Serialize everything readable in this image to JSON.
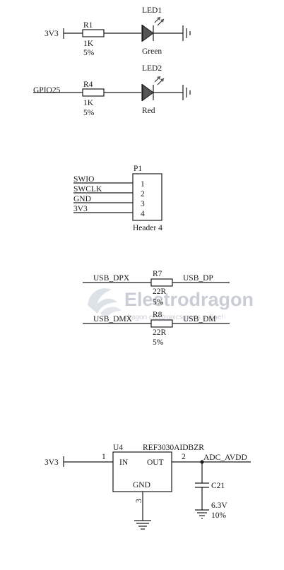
{
  "led_section": {
    "row1": {
      "net": "3V3",
      "resistor_ref": "R1",
      "resistor_value": "1K",
      "resistor_tol": "5%",
      "led_ref": "LED1",
      "led_color": "Green"
    },
    "row2": {
      "net": "GPIO25",
      "resistor_ref": "R4",
      "resistor_value": "1K",
      "resistor_tol": "5%",
      "led_ref": "LED2",
      "led_color": "Red"
    }
  },
  "header": {
    "ref": "P1",
    "name": "Header 4",
    "nets": [
      "SWIO",
      "SWCLK",
      "GND",
      "3V3"
    ],
    "pins": [
      "1",
      "2",
      "3",
      "4"
    ]
  },
  "usb_section": {
    "r7": {
      "left_net": "USB_DPX",
      "ref": "R7",
      "right_net": "USB_DP",
      "value": "22R",
      "tol": "5%"
    },
    "r8": {
      "left_net": "USB_DMX",
      "ref": "R8",
      "right_net": "USB_DM",
      "value": "22R",
      "tol": "5%"
    }
  },
  "watermark": {
    "brand": "Electrodragon",
    "tagline": "dragon electronics parts online!"
  },
  "regulator": {
    "ref": "U4",
    "part": "REF3030AIDBZR",
    "input_net": "3V3",
    "pin_in_num": "1",
    "pin_in": "IN",
    "pin_out_num": "2",
    "pin_out": "OUT",
    "pin_gnd": "GND",
    "pin_gnd_num": "3",
    "output_net": "ADC_AVDD",
    "cap_ref": "C21",
    "cap_voltage": "6.3V",
    "cap_tol": "10%"
  }
}
